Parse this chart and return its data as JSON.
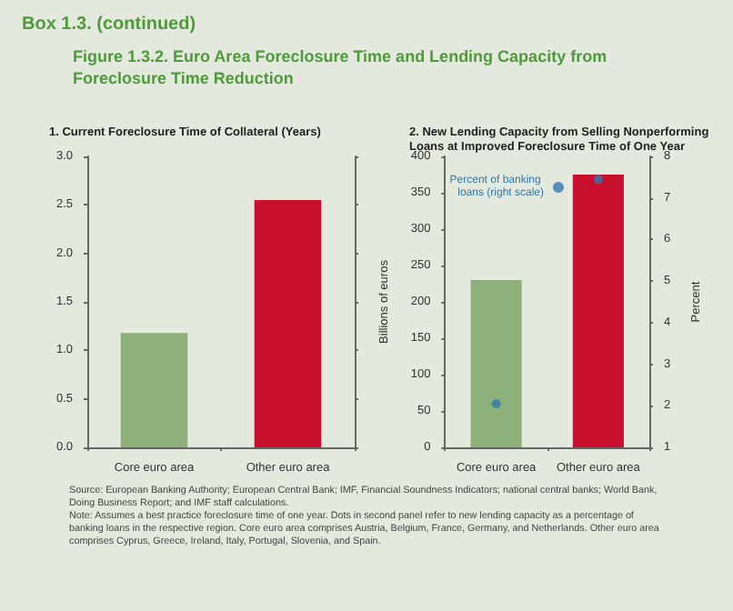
{
  "chart_data": [
    {
      "type": "other",
      "title": "Figure 1.3.2. Euro Area Foreclosure Time and Lending Capacity from Foreclosure Time Reduction",
      "annotations": [
        "Box 1.3. (continued)",
        "Source: European Banking Authority; European Central Bank; IMF, Financial Soundness Indicators; national central banks; World Bank, Doing Business Report; and IMF staff calculations.",
        "Note: Assumes a best practice foreclosure time of one year. Dots in second panel refer to new lending capacity as a percentage of banking loans in the respective region. Core euro area comprises Austria, Belgium, France, Germany, and Netherlands. Other euro area comprises Cyprus, Greece, Ireland, Italy, Portugal, Slovenia, and Spain."
      ]
    },
    {
      "type": "bar",
      "title": "1. Current Foreclosure Time of Collateral (Years)",
      "categories": [
        "Core euro area",
        "Other euro area"
      ],
      "values": [
        1.18,
        2.55
      ],
      "colors": [
        "#8db07a",
        "#c8102e"
      ],
      "ylim": [
        0,
        3
      ],
      "yticks": [
        {
          "value": 0,
          "label": "0.0"
        },
        0.5,
        {
          "value": 1,
          "label": "1.0"
        },
        1.5,
        {
          "value": 2,
          "label": "2.0"
        },
        2.5,
        {
          "value": 3,
          "label": "3.0"
        }
      ]
    },
    {
      "type": "bar",
      "title": "2. New Lending Capacity from Selling Nonperforming Loans at Improved Foreclosure Time of One Year",
      "categories": [
        "Core euro area",
        "Other euro area"
      ],
      "ylabel": "Billions of euros",
      "y2label": "Percent",
      "series": [
        {
          "values": [
            230,
            375
          ],
          "colors": [
            "#8db07a",
            "#c8102e"
          ]
        },
        {
          "type": "scatter",
          "name": "Percent of banking loans (right scale)",
          "color": "#2f78b0",
          "axis": "y2",
          "values": [
            2.05,
            7.45
          ]
        }
      ],
      "marker": "circle",
      "legend": "top left",
      "ylim": [
        0,
        400
      ],
      "yticks": [
        0,
        50,
        100,
        150,
        200,
        250,
        300,
        350,
        400
      ],
      "y2lim": [
        1,
        8
      ],
      "y2ticks": [
        1,
        2,
        3,
        4,
        5,
        6,
        7,
        8
      ]
    }
  ]
}
